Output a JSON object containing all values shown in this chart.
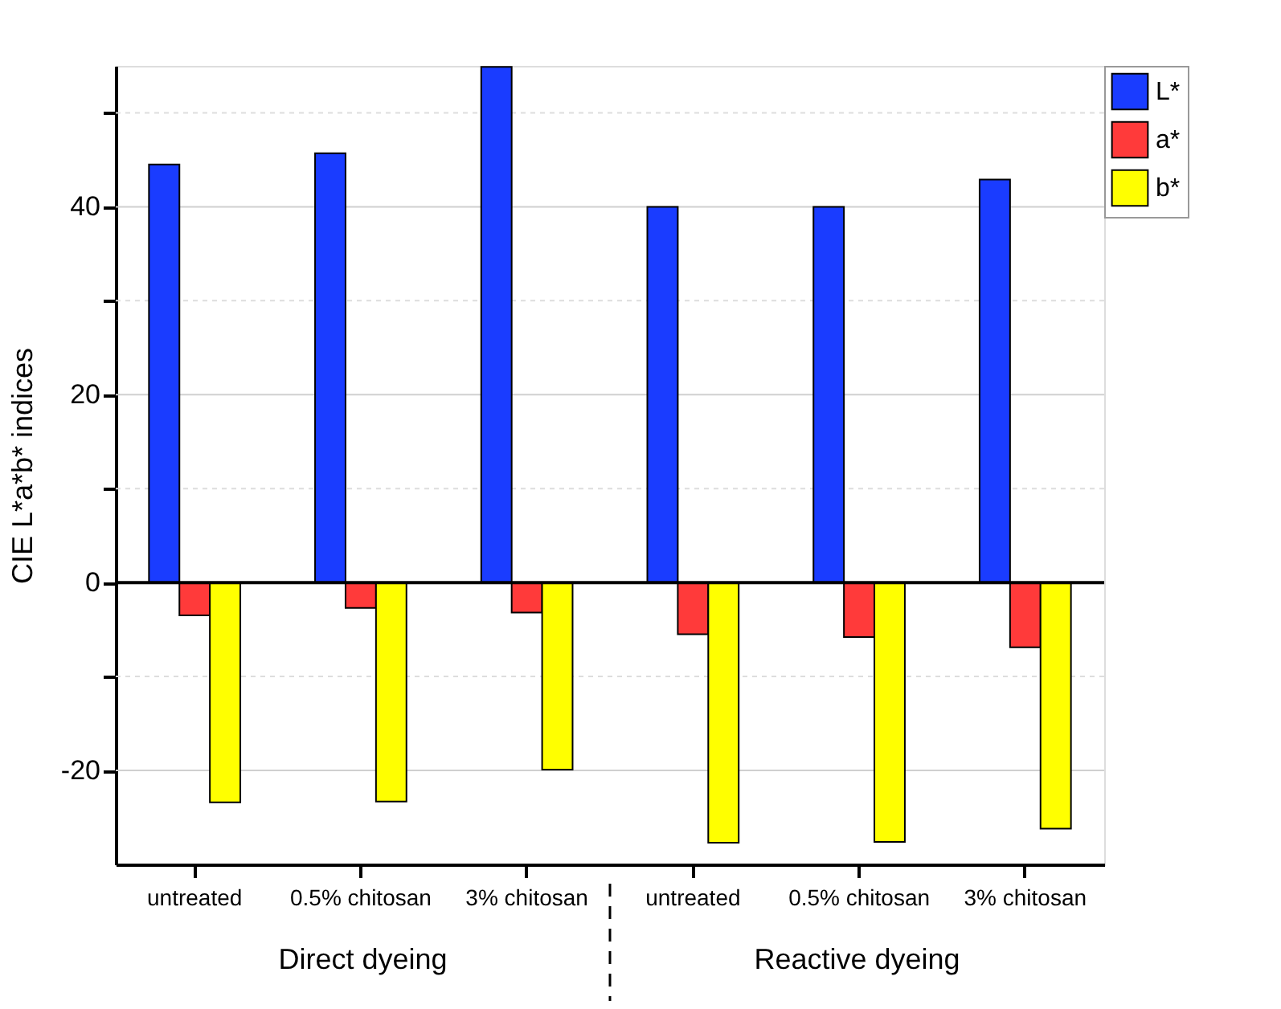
{
  "chart_data": {
    "type": "bar",
    "ylabel": "CIE L*a*b* indices",
    "categories": [
      "untreated",
      "0.5% chitosan",
      "3% chitosan",
      "untreated",
      "0.5% chitosan",
      "3% chitosan"
    ],
    "series": [
      {
        "name": "L*",
        "color": "#1a3cff",
        "values": [
          44.5,
          45.7,
          54.9,
          40,
          40,
          42.9
        ]
      },
      {
        "name": "a*",
        "color": "#ff3a3a",
        "values": [
          -3.5,
          -2.7,
          -3.2,
          -5.5,
          -5.8,
          -6.9
        ]
      },
      {
        "name": "b*",
        "color": "#ffff00",
        "values": [
          -23.4,
          -23.3,
          -19.9,
          -27.7,
          -27.6,
          -26.2
        ]
      }
    ],
    "ylim": [
      -30,
      55
    ],
    "yticks": [
      -20,
      {
        "value": -10,
        "label": null
      },
      0,
      {
        "value": 10,
        "label": null
      },
      20,
      {
        "value": 30,
        "label": null
      },
      40,
      {
        "value": 50,
        "label": null
      }
    ],
    "grid": "y",
    "legend": "top right",
    "annotations": [
      "Direct dyeing",
      "Reactive dyeing"
    ]
  }
}
